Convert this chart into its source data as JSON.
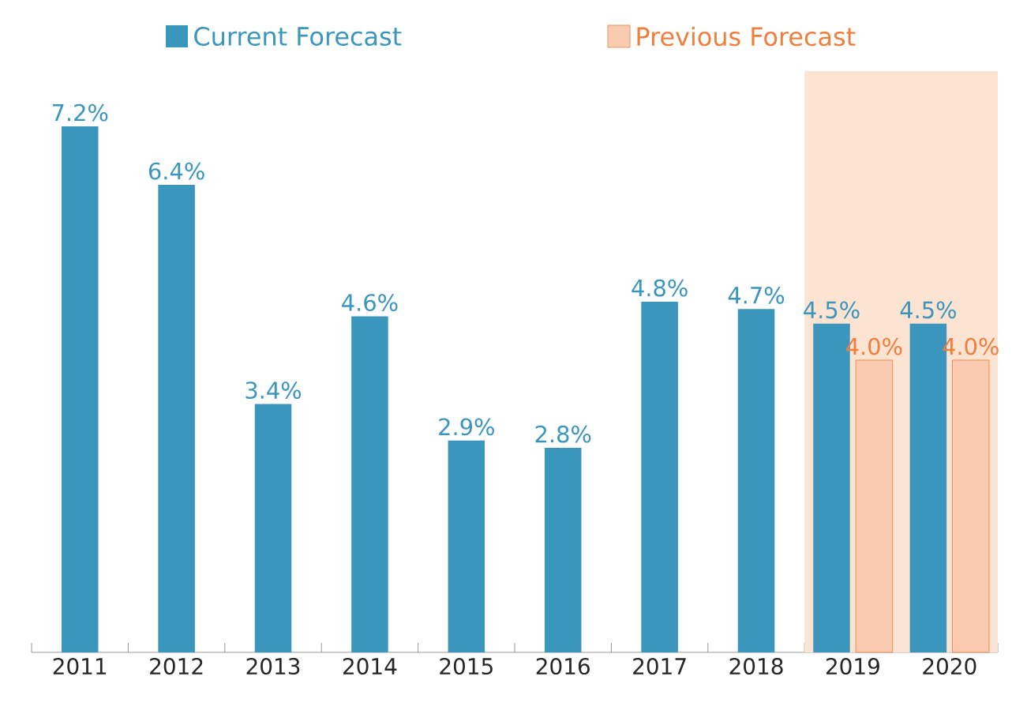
{
  "chart_data": {
    "type": "bar",
    "categories": [
      "2011",
      "2012",
      "2013",
      "2014",
      "2015",
      "2016",
      "2017",
      "2018",
      "2019",
      "2020"
    ],
    "series": [
      {
        "name": "Current Forecast",
        "color": "#3a96bd",
        "values": [
          7.2,
          6.4,
          3.4,
          4.6,
          2.9,
          2.8,
          4.8,
          4.7,
          4.5,
          4.5
        ],
        "value_labels": [
          "7.2%",
          "6.4%",
          "3.4%",
          "4.6%",
          "2.9%",
          "2.8%",
          "4.8%",
          "4.7%",
          "4.5%",
          "4.5%"
        ]
      },
      {
        "name": "Previous Forecast",
        "color": "#f07e3c",
        "values": [
          null,
          null,
          null,
          null,
          null,
          null,
          null,
          null,
          4.0,
          4.0
        ],
        "value_labels": [
          null,
          null,
          null,
          null,
          null,
          null,
          null,
          null,
          "4.0%",
          "4.0%"
        ]
      }
    ],
    "bands": [
      {
        "axis": "x",
        "from": "2019",
        "to": "2020",
        "color": "#fde3d2"
      }
    ],
    "legend": "top"
  }
}
